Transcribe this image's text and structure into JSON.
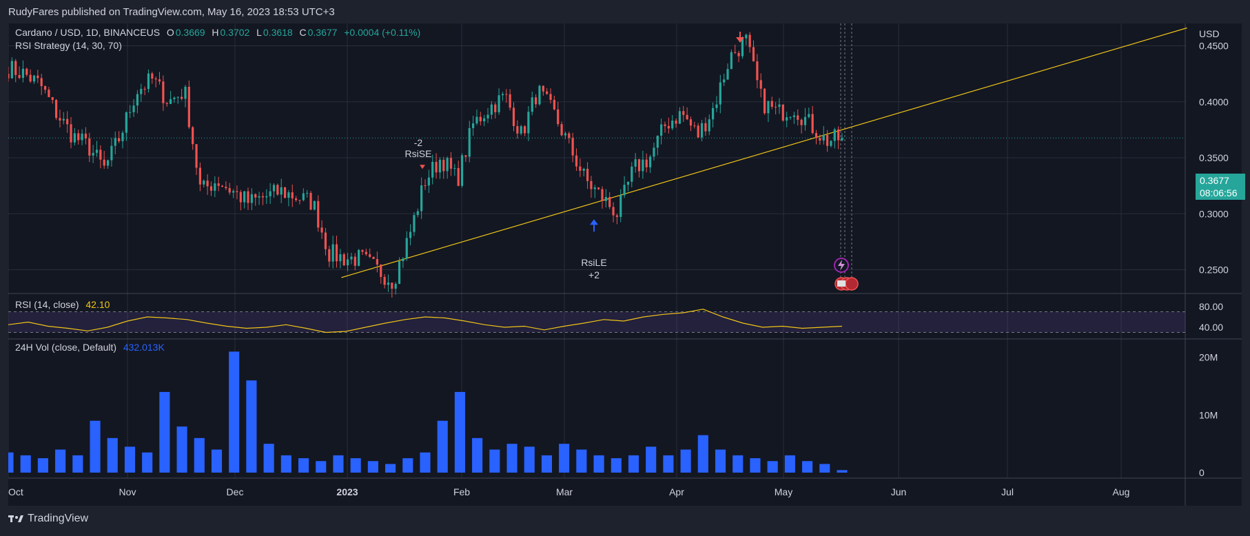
{
  "header": {
    "publisher_line": "RudyFares published on TradingView.com, May 16, 2023 18:53 UTC+3"
  },
  "symbol": {
    "title": "Cardano / USD, 1D, BINANCEUS",
    "o_label": "O",
    "o": "0.3669",
    "h_label": "H",
    "h": "0.3702",
    "l_label": "L",
    "l": "0.3618",
    "c_label": "C",
    "c": "0.3677",
    "change": "+0.0004 (+0.11%)",
    "strategy": "RSI Strategy (14, 30, 70)"
  },
  "price_axis": {
    "unit": "USD",
    "ticks": [
      "0.4500",
      "0.4000",
      "0.3500",
      "0.3000",
      "0.2500"
    ],
    "current_price": "0.3677",
    "countdown": "08:06:56"
  },
  "rsi_panel": {
    "label": "RSI (14, close)",
    "value": "42.10",
    "ticks": [
      "80.00",
      "40.00"
    ]
  },
  "volume_panel": {
    "label": "24H Vol (close, Default)",
    "value": "432.013K",
    "ticks": [
      "20M",
      "10M",
      "0"
    ]
  },
  "time_axis": [
    "Oct",
    "Nov",
    "Dec",
    "2023",
    "Feb",
    "Mar",
    "Apr",
    "May",
    "Jun",
    "Jul",
    "Aug"
  ],
  "annotations": {
    "short_qty": "-2",
    "short_label": "RsiSE",
    "long_label": "RsiLE",
    "long_qty": "+2"
  },
  "footer": {
    "brand": "TradingView"
  },
  "colors": {
    "background": "#131722",
    "up": "#26a69a",
    "down": "#ef5350",
    "rsi_line": "#f0c419",
    "rsi_band": "#7e57c2",
    "volume": "#2962ff",
    "trendline": "#f0c419"
  },
  "chart_data": {
    "type": "candlestick",
    "title": "Cardano / USD, 1D, BINANCEUS",
    "x": [
      "Oct",
      "Nov",
      "Dec",
      "2023",
      "Feb",
      "Mar",
      "Apr",
      "May",
      "Jun",
      "Jul",
      "Aug"
    ],
    "y_range": [
      0.23,
      0.47
    ],
    "price_anchors": [
      0.43,
      0.425,
      0.415,
      0.39,
      0.37,
      0.36,
      0.34,
      0.37,
      0.41,
      0.42,
      0.4,
      0.41,
      0.32,
      0.33,
      0.32,
      0.31,
      0.315,
      0.32,
      0.315,
      0.31,
      0.265,
      0.26,
      0.26,
      0.25,
      0.24,
      0.28,
      0.33,
      0.35,
      0.33,
      0.38,
      0.395,
      0.405,
      0.37,
      0.41,
      0.39,
      0.36,
      0.33,
      0.315,
      0.3,
      0.34,
      0.35,
      0.38,
      0.39,
      0.37,
      0.395,
      0.44,
      0.455,
      0.4,
      0.39,
      0.395,
      0.38,
      0.365,
      0.3677
    ],
    "trendline": [
      [
        "2022-12-31",
        0.243
      ],
      [
        "2023-08-19",
        0.466
      ]
    ],
    "signals": [
      {
        "date": "2023-01-21",
        "label": "RsiSE",
        "qty": -2,
        "price": 0.34
      },
      {
        "date": "2023-03-10",
        "label": "RsiLE",
        "qty": 2,
        "price": 0.3
      }
    ],
    "rsi": {
      "range": [
        20,
        100
      ],
      "upper": 70,
      "lower": 30,
      "values": [
        45,
        50,
        42,
        38,
        33,
        40,
        52,
        60,
        58,
        55,
        48,
        42,
        38,
        40,
        45,
        38,
        30,
        32,
        40,
        48,
        55,
        60,
        58,
        52,
        45,
        40,
        42,
        35,
        42,
        48,
        55,
        52,
        60,
        65,
        68,
        75,
        60,
        48,
        40,
        42,
        38,
        40,
        42
      ]
    },
    "volume": {
      "range": [
        0,
        22000000
      ],
      "values": [
        3500000,
        3000000,
        2500000,
        4000000,
        3000000,
        9000000,
        6000000,
        4500000,
        3500000,
        14000000,
        8000000,
        6000000,
        4000000,
        21000000,
        16000000,
        5000000,
        3000000,
        2500000,
        2000000,
        3000000,
        2500000,
        2000000,
        1500000,
        2500000,
        3500000,
        9000000,
        14000000,
        6000000,
        4000000,
        5000000,
        4500000,
        3000000,
        5000000,
        4000000,
        3000000,
        2500000,
        3000000,
        4500000,
        3000000,
        4000000,
        6500000,
        4000000,
        3000000,
        2500000,
        2000000,
        3000000,
        2000000,
        1500000,
        432013
      ]
    }
  }
}
